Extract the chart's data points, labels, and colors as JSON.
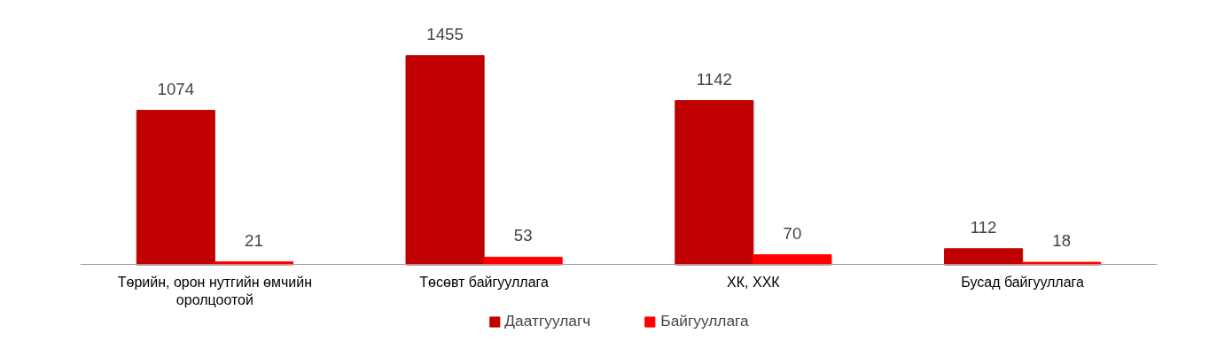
{
  "chart_data": {
    "type": "bar",
    "categories": [
      "Төрийн, орон нутгийн өмчийн оролцоотой",
      "Төсөвт байгууллага",
      "ХК, ХХК",
      "Бусад байгууллага"
    ],
    "series": [
      {
        "name": "Даатгуулагч",
        "color": "#c00000",
        "values": [
          1074,
          1455,
          1142,
          112
        ]
      },
      {
        "name": "Байгууллага",
        "color": "#ff0000",
        "values": [
          21,
          53,
          70,
          18
        ]
      }
    ],
    "data_labels": true,
    "legend": "bottom",
    "grid": false
  }
}
